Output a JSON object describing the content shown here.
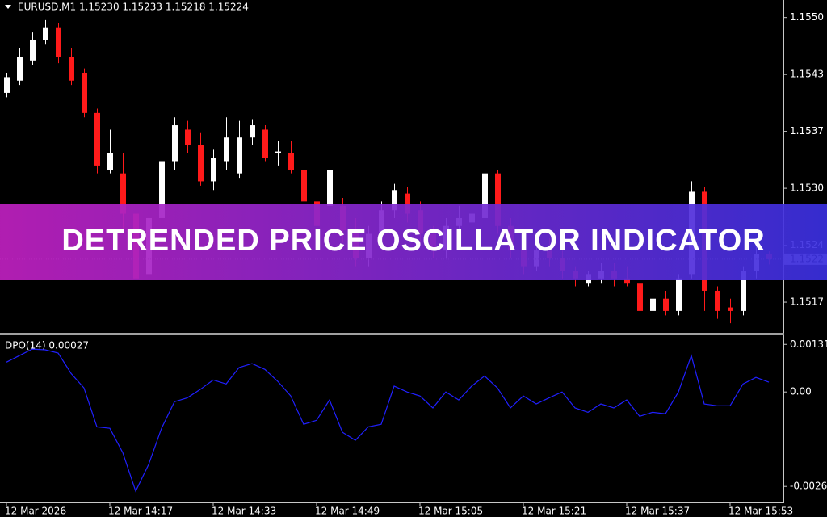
{
  "banner": "DETRENDED PRICE OSCILLATOR INDICATOR",
  "chart_data": [
    {
      "type": "candlestick",
      "title": "EURUSD,M1 1.15230 1.15233 1.15218 1.15224",
      "categories": [
        "12 Mar 2026",
        null,
        null,
        null,
        null,
        null,
        null,
        null,
        "12 Mar 14:17",
        null,
        null,
        null,
        null,
        null,
        null,
        null,
        "12 Mar 14:33",
        null,
        null,
        null,
        null,
        null,
        null,
        null,
        "12 Mar 14:49",
        null,
        null,
        null,
        null,
        null,
        null,
        null,
        "12 Mar 15:05",
        null,
        null,
        null,
        null,
        null,
        null,
        null,
        "12 Mar 15:21",
        null,
        null,
        null,
        null,
        null,
        null,
        null,
        "12 Mar 15:37",
        null,
        null,
        null,
        null,
        null,
        null,
        null,
        "12 Mar 15:53",
        null,
        null,
        null
      ],
      "open": [
        1.15414,
        1.15428,
        1.15451,
        1.15474,
        1.15488,
        1.15455,
        1.15437,
        1.15391,
        1.15326,
        1.15322,
        1.15276,
        1.15207,
        1.15271,
        1.15336,
        1.15372,
        1.15354,
        1.15313,
        1.15336,
        1.15322,
        1.15363,
        1.15372,
        1.15345,
        1.15345,
        1.15326,
        1.1529,
        1.15285,
        1.15285,
        1.15257,
        1.15225,
        1.15253,
        1.1528,
        1.15299,
        1.1528,
        1.15253,
        1.15234,
        1.15262,
        1.15266,
        1.15271,
        1.15322,
        1.15262,
        1.15234,
        1.15216,
        1.15234,
        1.15225,
        1.15211,
        1.15197,
        1.15202,
        1.15211,
        1.15202,
        1.15197,
        1.15165,
        1.15179,
        1.15165,
        1.15207,
        1.15301,
        1.15188,
        1.15169,
        1.15165,
        1.15211,
        1.1523
      ],
      "high": [
        1.15437,
        1.15465,
        1.15483,
        1.15497,
        1.15494,
        1.15465,
        1.15442,
        1.15396,
        1.15372,
        1.15345,
        1.15285,
        1.1528,
        1.15354,
        1.15386,
        1.15382,
        1.15368,
        1.15349,
        1.15386,
        1.15382,
        1.15384,
        1.15377,
        1.15359,
        1.15359,
        1.15336,
        1.15299,
        1.15331,
        1.15294,
        1.15271,
        1.15262,
        1.1529,
        1.1531,
        1.15306,
        1.1529,
        1.15262,
        1.15271,
        1.15285,
        1.15285,
        1.15326,
        1.15326,
        1.15271,
        1.15243,
        1.15243,
        1.15248,
        1.15234,
        1.15216,
        1.15211,
        1.1522,
        1.1522,
        1.15216,
        1.15202,
        1.15188,
        1.15188,
        1.15207,
        1.15313,
        1.15306,
        1.15193,
        1.15179,
        1.15216,
        1.15239,
        1.15233
      ],
      "low": [
        1.15409,
        1.15423,
        1.15446,
        1.15469,
        1.15448,
        1.15423,
        1.15386,
        1.15322,
        1.15322,
        1.15257,
        1.15193,
        1.15197,
        1.15262,
        1.15326,
        1.15345,
        1.15308,
        1.15303,
        1.15326,
        1.15317,
        1.15354,
        1.15336,
        1.15331,
        1.15322,
        1.15276,
        1.15243,
        1.15276,
        1.15243,
        1.15216,
        1.15216,
        1.15243,
        1.15271,
        1.15266,
        1.15243,
        1.15225,
        1.15225,
        1.15253,
        1.15257,
        1.15262,
        1.15253,
        1.15225,
        1.15207,
        1.15211,
        1.15216,
        1.15202,
        1.15193,
        1.15193,
        1.15197,
        1.15193,
        1.15193,
        1.1516,
        1.15162,
        1.1516,
        1.1516,
        1.15202,
        1.15165,
        1.15156,
        1.15151,
        1.1516,
        1.15202,
        1.15218
      ],
      "close": [
        1.15432,
        1.15455,
        1.15474,
        1.15488,
        1.15455,
        1.15428,
        1.15391,
        1.15331,
        1.15345,
        1.15276,
        1.15202,
        1.15271,
        1.15336,
        1.15377,
        1.15354,
        1.15313,
        1.1534,
        1.15363,
        1.15363,
        1.15377,
        1.1534,
        1.15347,
        1.15326,
        1.1529,
        1.15262,
        1.15326,
        1.15257,
        1.15225,
        1.15253,
        1.1528,
        1.15303,
        1.15276,
        1.15253,
        1.15234,
        1.15262,
        1.15271,
        1.15276,
        1.15322,
        1.15262,
        1.15234,
        1.15216,
        1.15234,
        1.15225,
        1.15211,
        1.15202,
        1.15207,
        1.15211,
        1.15202,
        1.15197,
        1.15165,
        1.15179,
        1.15165,
        1.15202,
        1.15301,
        1.15188,
        1.15165,
        1.15165,
        1.15211,
        1.1523,
        1.15224
      ],
      "up_color": "#ffffff",
      "down_color": "#ff1a1a",
      "ylim": [
        1.1514,
        1.1552
      ],
      "yticks": [
        {
          "value": 1.155,
          "label": "1.1550"
        },
        {
          "value": 1.15435,
          "label": "1.1543"
        },
        {
          "value": 1.1537,
          "label": "1.1537"
        },
        {
          "value": 1.15305,
          "label": "1.1530"
        },
        {
          "value": 1.1524,
          "label": "1.1524"
        },
        {
          "value": 1.15175,
          "label": "1.1517"
        }
      ],
      "current_price": {
        "value": 1.15224,
        "label": "1.1522"
      }
    },
    {
      "type": "line",
      "title": "DPO(14) 0.00027",
      "color": "#2020ff",
      "values": [
        0.00082,
        0.001,
        0.00118,
        0.00116,
        0.00107,
        0.00051,
        0.00011,
        -0.00096,
        -0.001,
        -0.00167,
        -0.00273,
        -0.002,
        -0.001,
        -0.00027,
        -0.00016,
        7e-05,
        0.00033,
        0.00022,
        0.00067,
        0.00078,
        0.00062,
        0.00029,
        -0.00011,
        -0.00089,
        -0.00078,
        -0.00022,
        -0.00111,
        -0.00133,
        -0.00096,
        -0.00089,
        0.00016,
        0,
        -0.00011,
        -0.00044,
        0,
        -0.00022,
        0.00016,
        0.00044,
        0.00011,
        -0.00044,
        -0.00011,
        -0.00033,
        -0.00016,
        0,
        -0.00044,
        -0.00056,
        -0.00033,
        -0.00044,
        -0.00022,
        -0.00067,
        -0.00056,
        -0.0006,
        0,
        0.001,
        -0.00033,
        -0.00038,
        -0.00038,
        0.00022,
        0.0004,
        0.00027
      ],
      "ylim": [
        -0.00304,
        0.00156
      ],
      "yticks": [
        0.00131,
        {
          "value": 0,
          "label": "0.00"
        },
        -0.0026
      ]
    }
  ]
}
